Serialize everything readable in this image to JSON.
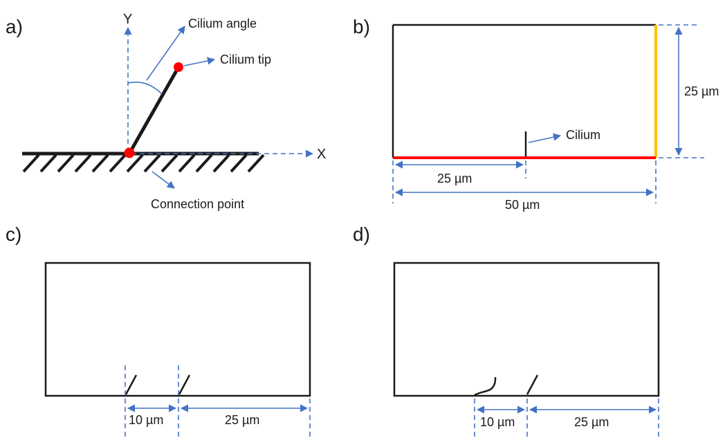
{
  "panels": {
    "a": {
      "label": "a)",
      "axis_y": "Y",
      "axis_x": "X",
      "cilium_angle": "Cilium angle",
      "cilium_tip": "Cilium tip",
      "connection_point": "Connection point"
    },
    "b": {
      "label": "b)",
      "cilium": "Cilium",
      "dim_height": "25 µm",
      "dim_left": "25 µm",
      "dim_width": "50 µm"
    },
    "c": {
      "label": "c)",
      "dim_gap": "10 µm",
      "dim_right": "25 µm"
    },
    "d": {
      "label": "d)",
      "dim_gap": "10 µm",
      "dim_right": "25 µm"
    }
  },
  "colors": {
    "line": "#1a1a1a",
    "dimension": "#4472c4",
    "bottom_boundary": "#ff0000",
    "right_boundary": "#ffc000",
    "marker": "#ff0000"
  }
}
